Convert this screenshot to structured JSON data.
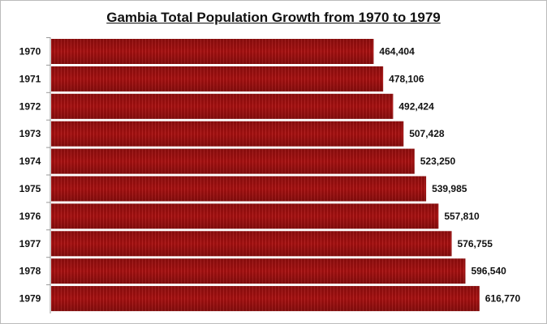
{
  "chart_data": {
    "type": "bar",
    "orientation": "horizontal",
    "title": "Gambia Total Population Growth from 1970 to 1979",
    "categories": [
      "1970",
      "1971",
      "1972",
      "1973",
      "1974",
      "1975",
      "1976",
      "1977",
      "1978",
      "1979"
    ],
    "values": [
      464404,
      478106,
      492424,
      507428,
      523250,
      539985,
      557810,
      576755,
      596540,
      616770
    ],
    "data_labels": [
      "464,404",
      "478,106",
      "492,424",
      "507,428",
      "523,250",
      "539,985",
      "557,810",
      "576,755",
      "596,540",
      "616,770"
    ],
    "xlim": [
      0,
      700000
    ],
    "grid": false,
    "bar_color": "#a01010"
  }
}
